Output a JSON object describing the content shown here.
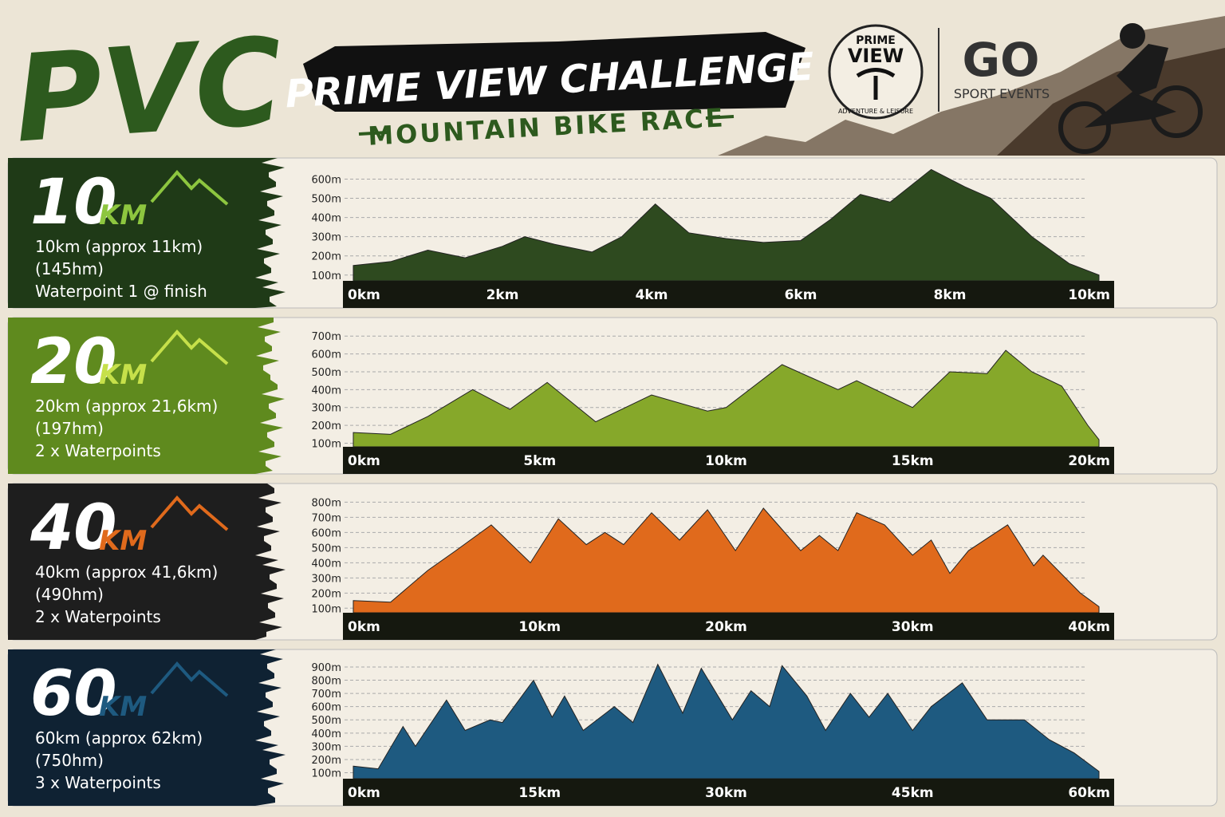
{
  "header": {
    "logo": "PVC",
    "title": "PRIME VIEW CHALLENGE",
    "subtitle": "MOUNTAIN BIKE RACE",
    "partner1_top": "PRIME",
    "partner1_main": "VIEW",
    "partner1_ring": "ADVENTURE & LEISURE",
    "partner2_main": "GO",
    "partner2_sub": "SPORT EVENTS"
  },
  "panels": [
    {
      "distance": "10",
      "unit": "KM",
      "lines": [
        "10km (approx 11km)",
        "(145hm)",
        "Waterpoint 1 @ finish"
      ]
    },
    {
      "distance": "20",
      "unit": "KM",
      "lines": [
        "20km (approx 21,6km)",
        "(197hm)",
        "2 x Waterpoints"
      ]
    },
    {
      "distance": "40",
      "unit": "KM",
      "lines": [
        "40km (approx 41,6km)",
        "(490hm)",
        "2 x Waterpoints"
      ]
    },
    {
      "distance": "60",
      "unit": "KM",
      "lines": [
        "60km (approx 62km)",
        "(750hm)",
        "3 x Waterpoints"
      ]
    }
  ],
  "chart_data": [
    {
      "type": "area",
      "color": "#2e4a1f",
      "xlim": [
        0,
        10
      ],
      "ylim": [
        70,
        660
      ],
      "x": [
        0,
        0.5,
        1,
        1.5,
        2,
        2.3,
        2.7,
        3.2,
        3.6,
        4.05,
        4.5,
        5,
        5.5,
        6,
        6.4,
        6.8,
        7.2,
        7.75,
        8.2,
        8.55,
        9.1,
        9.6,
        10
      ],
      "values": [
        150,
        170,
        230,
        190,
        250,
        300,
        260,
        220,
        300,
        470,
        320,
        290,
        270,
        280,
        390,
        520,
        480,
        650,
        560,
        500,
        300,
        160,
        100
      ],
      "yticks": [
        {
          "value": 100,
          "label": "100m"
        },
        {
          "value": 200,
          "label": "200m"
        },
        {
          "value": 300,
          "label": "300m"
        },
        {
          "value": 400,
          "label": "400m"
        },
        {
          "value": 500,
          "label": "500m"
        },
        {
          "value": 600,
          "label": "600m"
        }
      ],
      "xticks": [
        {
          "value": 0,
          "label": "0km"
        },
        {
          "value": 2,
          "label": "2km"
        },
        {
          "value": 4,
          "label": "4km"
        },
        {
          "value": 6,
          "label": "6km"
        },
        {
          "value": 8,
          "label": "8km"
        },
        {
          "value": 10,
          "label": "10km"
        }
      ],
      "grid": true
    },
    {
      "type": "area",
      "color": "#86a82a",
      "xlim": [
        0,
        20
      ],
      "ylim": [
        80,
        750
      ],
      "x": [
        0,
        1,
        2,
        3.2,
        4.2,
        5.2,
        6.5,
        8,
        9.5,
        10,
        11.5,
        13,
        13.5,
        15,
        16,
        17,
        17.5,
        18.2,
        19,
        19.7,
        20
      ],
      "values": [
        160,
        150,
        250,
        400,
        290,
        440,
        220,
        370,
        280,
        300,
        540,
        400,
        450,
        300,
        500,
        490,
        620,
        500,
        420,
        200,
        120
      ],
      "yticks": [
        {
          "value": 100,
          "label": "100m"
        },
        {
          "value": 200,
          "label": "200m"
        },
        {
          "value": 300,
          "label": "300m"
        },
        {
          "value": 400,
          "label": "400m"
        },
        {
          "value": 500,
          "label": "500m"
        },
        {
          "value": 600,
          "label": "600m"
        },
        {
          "value": 700,
          "label": "700m"
        }
      ],
      "xticks": [
        {
          "value": 0,
          "label": "0km"
        },
        {
          "value": 5,
          "label": "5km"
        },
        {
          "value": 10,
          "label": "10km"
        },
        {
          "value": 15,
          "label": "15km"
        },
        {
          "value": 20,
          "label": "20km"
        }
      ],
      "grid": true
    },
    {
      "type": "area",
      "color": "#e06a1c",
      "xlim": [
        0,
        40
      ],
      "ylim": [
        70,
        860
      ],
      "x": [
        0,
        2,
        4,
        5.5,
        7.4,
        9.5,
        11,
        12.5,
        13.5,
        14.5,
        16,
        17.5,
        19,
        20.5,
        22,
        24,
        25,
        26,
        27,
        28.5,
        30,
        31,
        32,
        33,
        35.1,
        36.5,
        37,
        39,
        40
      ],
      "values": [
        150,
        140,
        350,
        480,
        650,
        400,
        690,
        520,
        600,
        520,
        730,
        550,
        750,
        480,
        760,
        480,
        580,
        480,
        730,
        650,
        450,
        550,
        330,
        480,
        650,
        380,
        450,
        200,
        110
      ],
      "yticks": [
        {
          "value": 100,
          "label": "100m"
        },
        {
          "value": 200,
          "label": "200m"
        },
        {
          "value": 300,
          "label": "300m"
        },
        {
          "value": 400,
          "label": "400m"
        },
        {
          "value": 500,
          "label": "500m"
        },
        {
          "value": 600,
          "label": "600m"
        },
        {
          "value": 700,
          "label": "700m"
        },
        {
          "value": 800,
          "label": "800m"
        }
      ],
      "xticks": [
        {
          "value": 0,
          "label": "0km"
        },
        {
          "value": 10,
          "label": "10km"
        },
        {
          "value": 20,
          "label": "20km"
        },
        {
          "value": 30,
          "label": "30km"
        },
        {
          "value": 40,
          "label": "40km"
        }
      ],
      "grid": true
    },
    {
      "type": "area",
      "color": "#1e5a80",
      "xlim": [
        0,
        60
      ],
      "ylim": [
        55,
        960
      ],
      "x": [
        0,
        2,
        4,
        5,
        7.5,
        9,
        11,
        12,
        14.5,
        16,
        17,
        18.5,
        21,
        22.5,
        24.5,
        26.5,
        28,
        30.5,
        32,
        33.5,
        34.5,
        36.5,
        38,
        40,
        41.5,
        43,
        45,
        46.5,
        49,
        51,
        54,
        56,
        58,
        60
      ],
      "values": [
        150,
        130,
        450,
        300,
        650,
        420,
        500,
        480,
        800,
        520,
        680,
        420,
        600,
        480,
        920,
        550,
        890,
        500,
        720,
        600,
        910,
        680,
        420,
        700,
        520,
        700,
        420,
        600,
        780,
        500,
        500,
        350,
        250,
        110
      ],
      "yticks": [
        {
          "value": 100,
          "label": "100m"
        },
        {
          "value": 200,
          "label": "200m"
        },
        {
          "value": 300,
          "label": "300m"
        },
        {
          "value": 400,
          "label": "400m"
        },
        {
          "value": 500,
          "label": "500m"
        },
        {
          "value": 600,
          "label": "600m"
        },
        {
          "value": 700,
          "label": "700m"
        },
        {
          "value": 800,
          "label": "800m"
        },
        {
          "value": 900,
          "label": "900m"
        }
      ],
      "xticks": [
        {
          "value": 0,
          "label": "0km"
        },
        {
          "value": 15,
          "label": "15km"
        },
        {
          "value": 30,
          "label": "30km"
        },
        {
          "value": 45,
          "label": "45km"
        },
        {
          "value": 60,
          "label": "60km"
        }
      ],
      "grid": true
    }
  ]
}
